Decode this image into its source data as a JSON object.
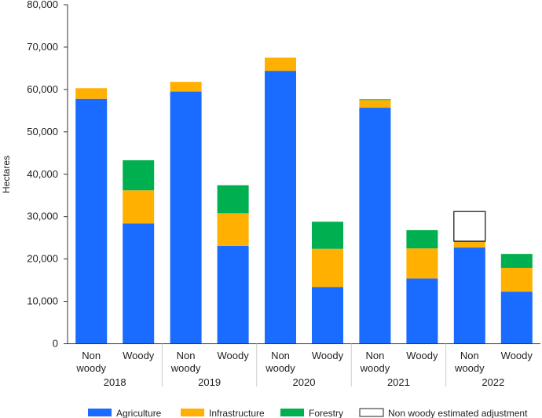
{
  "chart_data": {
    "type": "bar",
    "stacked": true,
    "ylabel": "Hectares",
    "ylim": [
      0,
      80000
    ],
    "yticks": [
      0,
      10000,
      20000,
      30000,
      40000,
      50000,
      60000,
      70000,
      80000
    ],
    "ytick_labels": [
      "0",
      "10,000",
      "20,000",
      "30,000",
      "40,000",
      "50,000",
      "60,000",
      "70,000",
      "80,000"
    ],
    "grid": false,
    "legend_position": "bottom",
    "groups": [
      "2018",
      "2019",
      "2020",
      "2021",
      "2022"
    ],
    "bar_types": [
      {
        "line1": "Non",
        "line2": "woody"
      },
      {
        "line1": "Woody",
        "line2": ""
      }
    ],
    "categories": [
      "2018 Non woody",
      "2018 Woody",
      "2019 Non woody",
      "2019 Woody",
      "2020 Non woody",
      "2020 Woody",
      "2021 Non woody",
      "2021 Woody",
      "2022 Non woody",
      "2022 Woody"
    ],
    "series": [
      {
        "name": "Agriculture",
        "color": "#1a6bff",
        "outline": false,
        "values": [
          57800,
          28400,
          59500,
          23100,
          64400,
          13400,
          55700,
          15400,
          22700,
          12300
        ]
      },
      {
        "name": "Infrastructure",
        "color": "#ffb000",
        "outline": false,
        "values": [
          2500,
          7800,
          2300,
          7700,
          3100,
          9000,
          1800,
          7100,
          1300,
          5600
        ]
      },
      {
        "name": "Forestry",
        "color": "#00b050",
        "outline": false,
        "values": [
          0,
          7100,
          0,
          6600,
          0,
          6400,
          200,
          4300,
          200,
          3300
        ]
      },
      {
        "name": "Non woody estimated adjustment",
        "color": "#ffffff",
        "outline": true,
        "values": [
          0,
          0,
          0,
          0,
          0,
          0,
          0,
          0,
          7000,
          0
        ]
      }
    ]
  }
}
